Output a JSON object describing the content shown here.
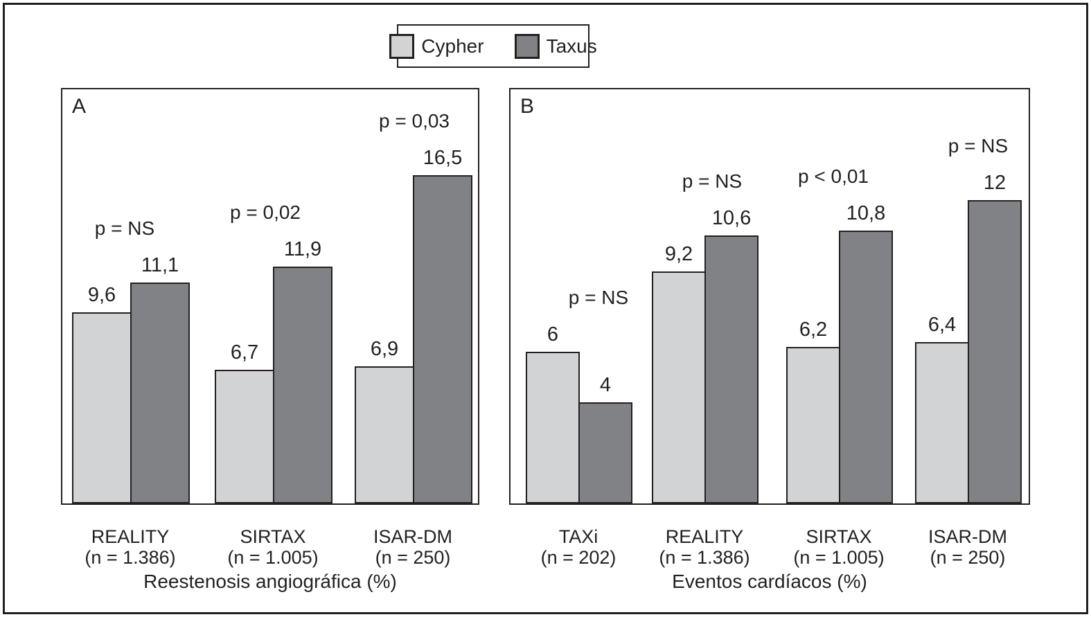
{
  "legend": {
    "items": [
      {
        "label": "Cypher",
        "color": "#d1d3d4"
      },
      {
        "label": "Taxus",
        "color": "#808285"
      }
    ]
  },
  "colors": {
    "cypher": "#d1d3d4",
    "taxus": "#808285",
    "ink": "#231f20",
    "background": "#ffffff"
  },
  "chart_data": [
    {
      "type": "bar",
      "panel_label": "A",
      "title": "Reestenosis angiográfica (%)",
      "categories": [
        "REALITY",
        "SIRTAX",
        "ISAR-DM"
      ],
      "category_n": [
        "(n = 1.386)",
        "(n = 1.005)",
        "(n = 250)"
      ],
      "series": [
        {
          "name": "Cypher",
          "values": [
            9.6,
            6.7,
            6.9
          ]
        },
        {
          "name": "Taxus",
          "values": [
            11.1,
            11.9,
            16.5
          ]
        }
      ],
      "p_labels": [
        "p = NS",
        "p = 0,02",
        "p = 0,03"
      ],
      "ylim": [
        0,
        20.8
      ],
      "grid": false,
      "legend_position": "top-center"
    },
    {
      "type": "bar",
      "panel_label": "B",
      "title": "Eventos cardíacos (%)",
      "categories": [
        "TAXi",
        "REALITY",
        "SIRTAX",
        "ISAR-DM"
      ],
      "category_n": [
        "(n = 202)",
        "(n = 1.386)",
        "(n = 1.005)",
        "(n = 250)"
      ],
      "series": [
        {
          "name": "Cypher",
          "values": [
            6,
            9.2,
            6.2,
            6.4
          ]
        },
        {
          "name": "Taxus",
          "values": [
            4,
            10.6,
            10.8,
            12
          ]
        }
      ],
      "p_labels": [
        "p = NS",
        "p = NS",
        "p < 0,01",
        "p = NS"
      ],
      "ylim": [
        0,
        16.4
      ],
      "grid": false,
      "legend_position": "top-center"
    }
  ]
}
